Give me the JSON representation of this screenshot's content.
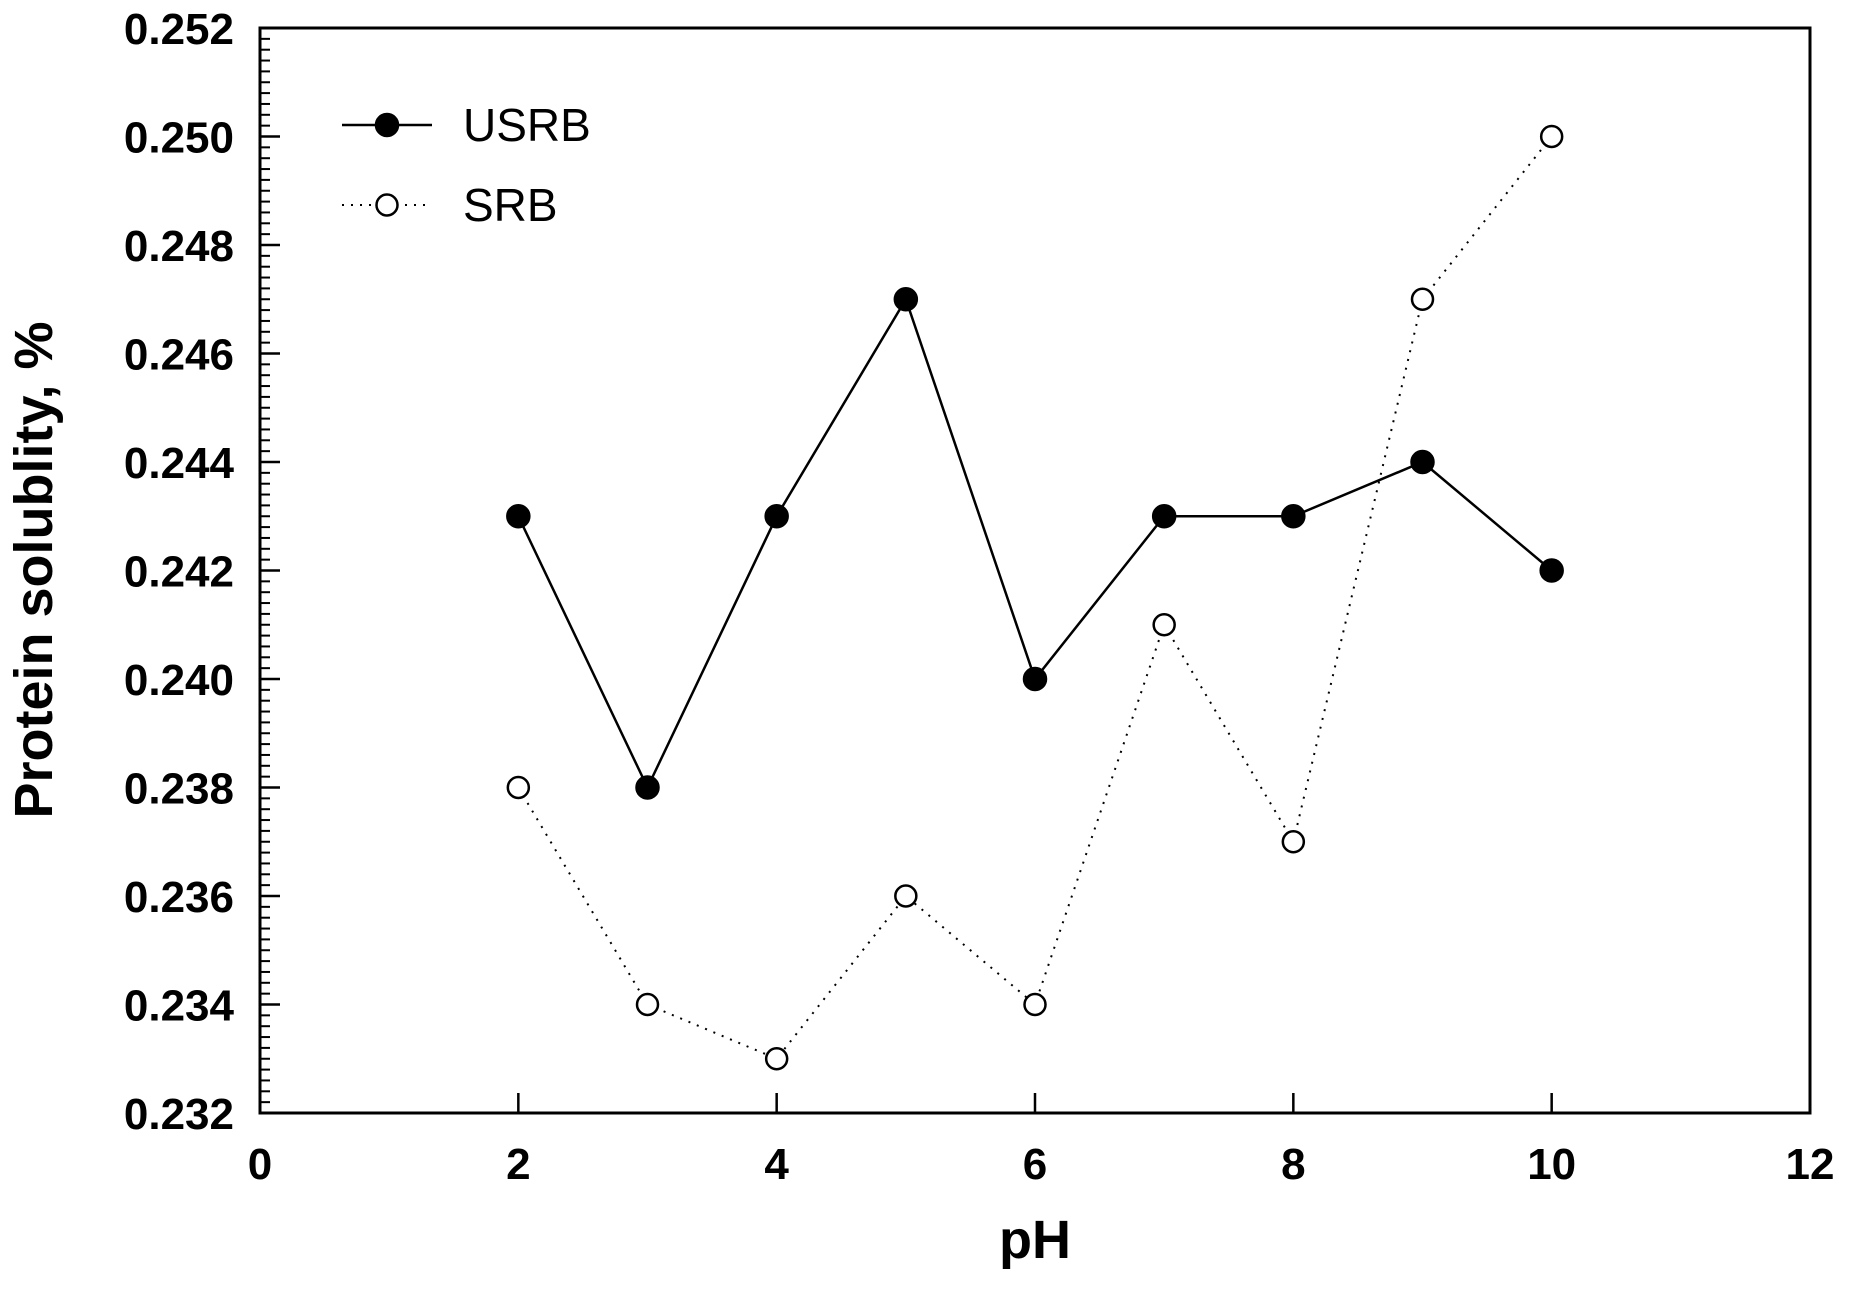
{
  "chart_data": {
    "type": "line",
    "xlabel": "pH",
    "ylabel": "Protein solublity, %",
    "xlim": [
      0,
      12
    ],
    "ylim": [
      0.232,
      0.252
    ],
    "x_ticks": [
      "0",
      "2",
      "4",
      "6",
      "8",
      "10",
      "12"
    ],
    "y_ticks": [
      "0.232",
      "0.234",
      "0.236",
      "0.238",
      "0.240",
      "0.242",
      "0.244",
      "0.246",
      "0.248",
      "0.250",
      "0.252"
    ],
    "grid": false,
    "legend_position": "top-left",
    "series": [
      {
        "name": "USRB",
        "marker": "filled-circle",
        "line_style": "solid",
        "color": "#000000",
        "x": [
          2,
          3,
          4,
          5,
          6,
          7,
          8,
          9,
          10
        ],
        "y": [
          0.243,
          0.238,
          0.243,
          0.247,
          0.24,
          0.243,
          0.243,
          0.244,
          0.242
        ]
      },
      {
        "name": "SRB",
        "marker": "open-circle",
        "line_style": "dotted",
        "color": "#000000",
        "x": [
          2,
          3,
          4,
          5,
          6,
          7,
          8,
          9,
          10
        ],
        "y": [
          0.238,
          0.234,
          0.233,
          0.236,
          0.234,
          0.241,
          0.237,
          0.247,
          0.25
        ]
      }
    ]
  }
}
